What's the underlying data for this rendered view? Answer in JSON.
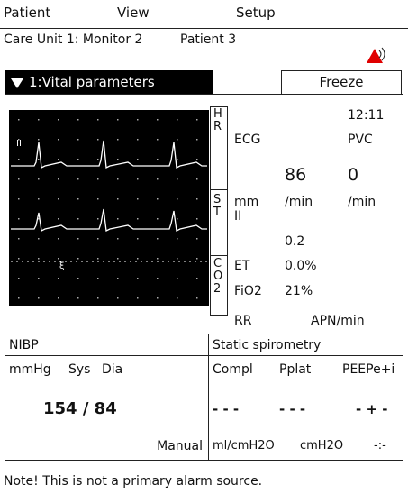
{
  "menu": [
    "Patient",
    "View",
    "Setup"
  ],
  "header": {
    "unit": "Care Unit 1: Monitor 2",
    "patient": "Patient 3"
  },
  "panel": {
    "title": "1:Vital parameters",
    "button": "Freeze"
  },
  "waveform": {
    "lead": "II"
  },
  "side_labels": [
    "HR",
    "ST",
    "CO2"
  ],
  "vitals": {
    "time": "12:11",
    "ecg": "ECG",
    "pvc": "PVC",
    "hr": "86",
    "pvc_value": "0",
    "st_unit": "mm",
    "st_lead": "II",
    "hr_unit": "/min",
    "pvc_unit": "/min",
    "st_value": "0.2",
    "et": "ET",
    "et_value": "0.0%",
    "fio2": "FiO2",
    "fio2_value": "21%",
    "rr": "RR",
    "rr_value": "APN/min"
  },
  "nibp": {
    "title": "NIBP",
    "unit": "mmHg",
    "sys": "Sys",
    "dia": "Dia",
    "value": "154 / 84",
    "mode": "Manual"
  },
  "spirometry": {
    "title": "Static spirometry",
    "headers": [
      "Compl",
      "Pplat",
      "PEEPe+i"
    ],
    "values": [
      "- - -",
      "- - -",
      "- + -"
    ],
    "units": [
      "ml/cmH2O",
      "cmH2O",
      "-:-"
    ]
  },
  "note": "Note! This is not a primary alarm source."
}
